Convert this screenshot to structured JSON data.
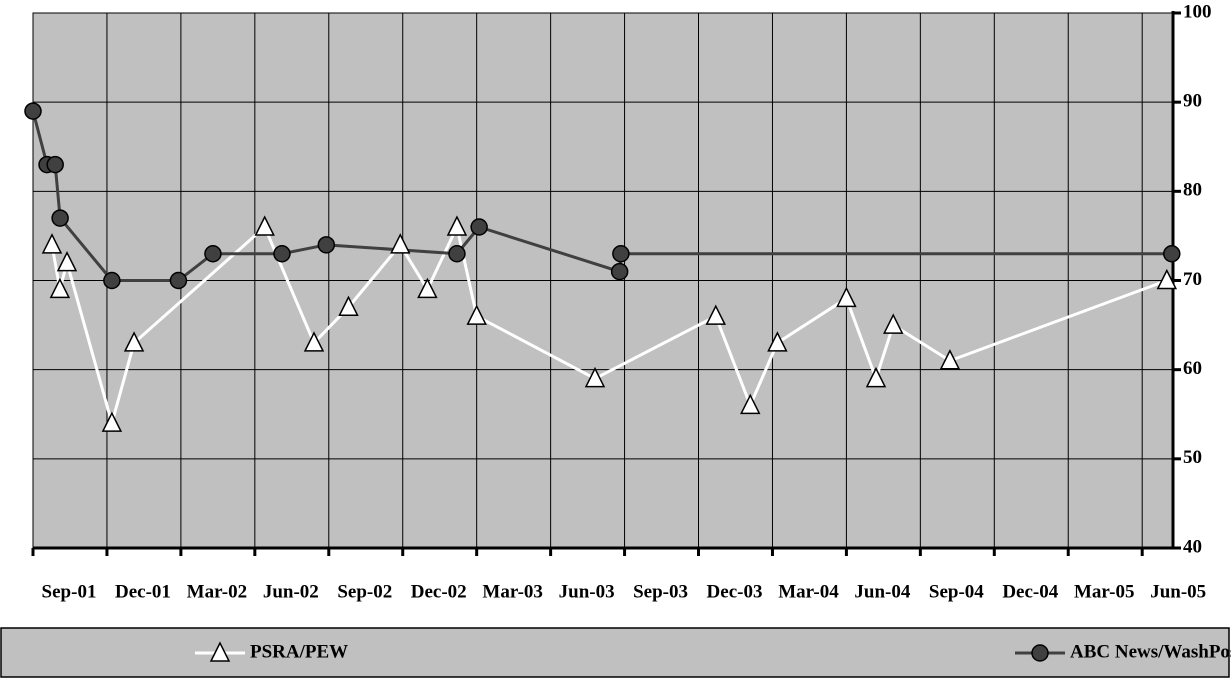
{
  "chart_data": {
    "type": "line",
    "xlim": [
      0,
      46.25
    ],
    "xticks": [
      {
        "value": 0,
        "label": "Sep-01"
      },
      {
        "value": 3,
        "label": "Dec-01"
      },
      {
        "value": 6,
        "label": "Mar-02"
      },
      {
        "value": 9,
        "label": "Jun-02"
      },
      {
        "value": 12,
        "label": "Sep-02"
      },
      {
        "value": 15,
        "label": "Dec-02"
      },
      {
        "value": 18,
        "label": "Mar-03"
      },
      {
        "value": 21,
        "label": "Jun-03"
      },
      {
        "value": 24,
        "label": "Sep-03"
      },
      {
        "value": 27,
        "label": "Dec-03"
      },
      {
        "value": 30,
        "label": "Mar-04"
      },
      {
        "value": 33,
        "label": "Jun-04"
      },
      {
        "value": 36,
        "label": "Sep-04"
      },
      {
        "value": 39,
        "label": "Dec-04"
      },
      {
        "value": 42,
        "label": "Mar-05"
      },
      {
        "value": 45,
        "label": "Jun-05"
      }
    ],
    "ylim": [
      40,
      100
    ],
    "yticks": [
      40,
      50,
      60,
      70,
      80,
      90,
      100
    ],
    "grid": true,
    "legend": "bottom",
    "series": [
      {
        "name": "PSRA/PEW",
        "color": "#ffffff",
        "marker": "triangle",
        "x": [
          0.77,
          1.09,
          1.38,
          3.2,
          4.1,
          9.4,
          11.4,
          12.8,
          14.9,
          16.0,
          17.2,
          18.0,
          22.8,
          27.7,
          29.1,
          30.2,
          33.0,
          34.2,
          34.9,
          37.2,
          46.0
        ],
        "values": [
          74,
          69,
          72,
          54,
          63,
          76,
          63,
          67,
          74,
          69,
          76,
          66,
          59,
          66,
          56,
          63,
          68,
          59,
          65,
          61,
          70
        ]
      },
      {
        "name": "ABC News/WashPost",
        "color": "#404040",
        "marker": "circle",
        "x": [
          0,
          0.57,
          0.9,
          1.1,
          3.2,
          5.9,
          7.3,
          10.1,
          11.9,
          17.2,
          18.1,
          23.8,
          23.85,
          46.2
        ],
        "values": [
          89,
          83,
          83,
          77,
          70,
          70,
          73,
          73,
          74,
          73,
          76,
          71,
          73,
          73
        ]
      }
    ]
  }
}
